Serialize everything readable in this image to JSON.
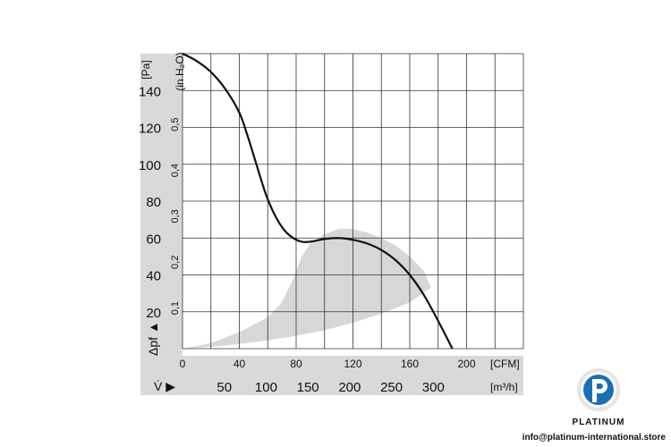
{
  "chart_data": {
    "type": "line",
    "y_unit_left": "[Pa]",
    "y_unit_right": "(in H₂O)",
    "y_axis_symbol": "Δpf ▲",
    "x_unit_cfm": "[CFM]",
    "x_unit_m3h": "[m³/h]",
    "x_axis_symbol": "V̇ ▶",
    "ylim": [
      0,
      160
    ],
    "xlim_cfm": [
      0,
      240
    ],
    "y_ticks_pa": [
      20,
      40,
      60,
      80,
      100,
      120,
      140
    ],
    "y_ticks_inh2o": [
      "0,1",
      "0,2",
      "0,3",
      "0,4",
      "0,5"
    ],
    "x_ticks_cfm": [
      "0",
      "40",
      "80",
      "120",
      "160",
      "200"
    ],
    "x_ticks_m3h": [
      "50",
      "100",
      "150",
      "200",
      "250",
      "300"
    ],
    "grid": true,
    "series": [
      {
        "x": [
          0,
          10,
          20,
          30,
          40,
          46,
          52,
          56,
          60,
          66,
          72,
          78,
          84,
          90,
          100,
          110,
          120,
          130,
          140,
          150,
          160,
          170,
          180,
          190
        ],
        "y": [
          160,
          156,
          150,
          141,
          128,
          115,
          100,
          90,
          81,
          71,
          64,
          60,
          58,
          58,
          59.5,
          60,
          59,
          57,
          53.5,
          48,
          40,
          29,
          15,
          0
        ]
      }
    ],
    "operating_region": {
      "upper_x": [
        0,
        20,
        40,
        60,
        70,
        78,
        84,
        90,
        100,
        110,
        120,
        130,
        140,
        150,
        160,
        170,
        175
      ],
      "upper_y": [
        0,
        3,
        9,
        17,
        25,
        38,
        50,
        57,
        62,
        65,
        65,
        63,
        60,
        56,
        50,
        42,
        33
      ],
      "lower_x": [
        175,
        160,
        140,
        120,
        100,
        80,
        60,
        40,
        20,
        0
      ],
      "lower_y": [
        33,
        25,
        19,
        14,
        10,
        7,
        4.5,
        2.5,
        1,
        0
      ],
      "color": "#cfcfcf"
    },
    "colors": {
      "curve": "#111111",
      "band": "#d7d7d7",
      "grid": "#333333"
    }
  },
  "footer": {
    "logo_text": "PLATINUM",
    "email": "info@platinum-international.store",
    "logo_color": "#1a6fb5"
  }
}
